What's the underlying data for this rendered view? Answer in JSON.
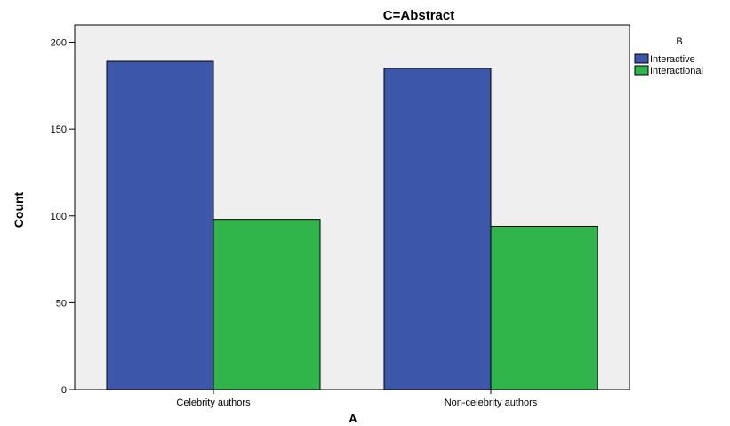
{
  "chart_data": {
    "type": "bar",
    "title": "C=Abstract",
    "xlabel": "A",
    "ylabel": "Count",
    "categories": [
      "Celebrity authors",
      "Non-celebrity authors"
    ],
    "series": [
      {
        "name": "Interactive",
        "values": [
          189,
          185
        ],
        "color": "#3c56a9"
      },
      {
        "name": "Interactional",
        "values": [
          98,
          94
        ],
        "color": "#2fb54a"
      }
    ],
    "ylim": [
      0,
      210
    ],
    "yticks": [
      0,
      50,
      100,
      150,
      200
    ],
    "legend": {
      "title": "B",
      "position": "right"
    },
    "grid": false,
    "plot_background": "#efefef"
  }
}
